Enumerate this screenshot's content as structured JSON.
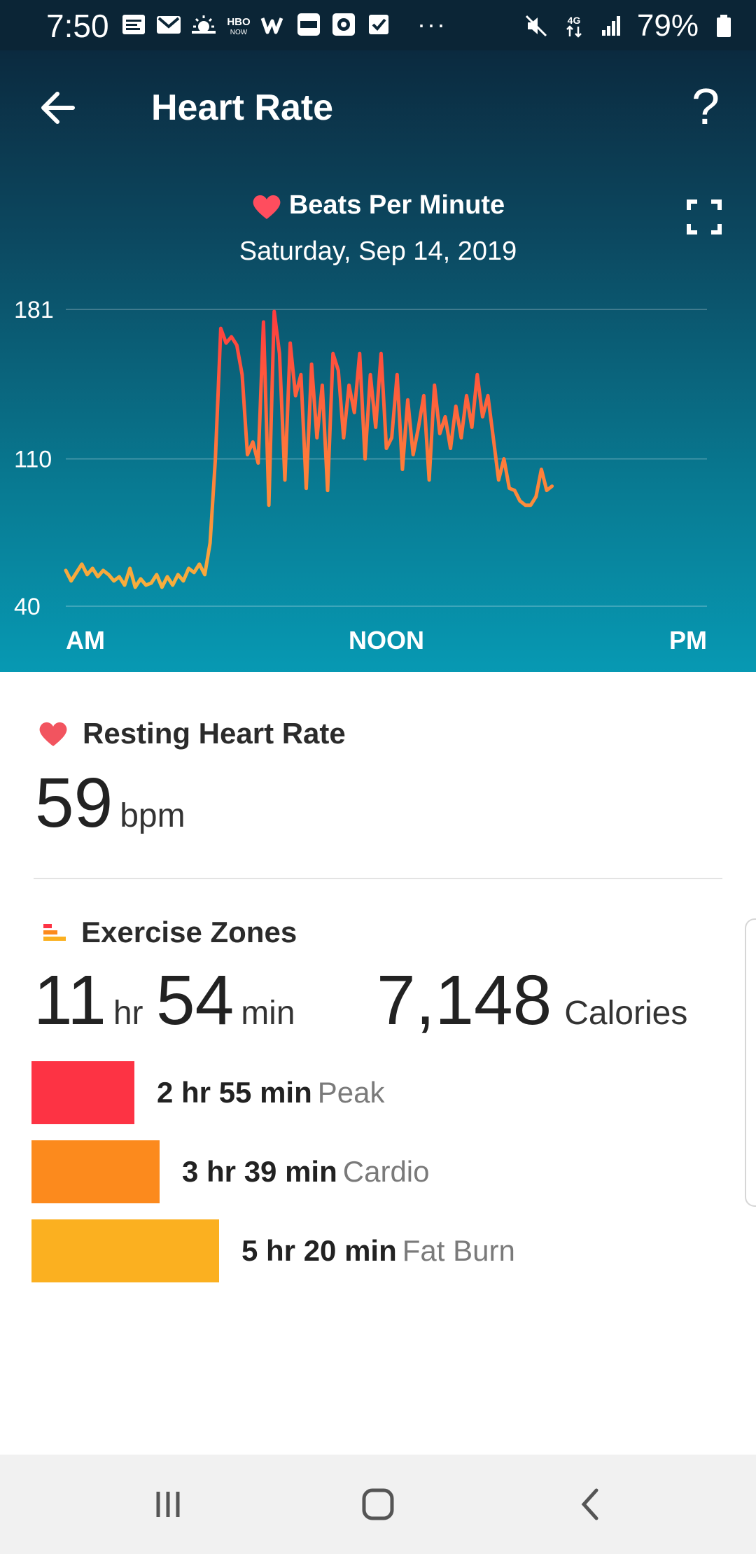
{
  "status_bar": {
    "time": "7:50",
    "notification_icons": [
      "calendar-icon",
      "gmail-icon",
      "weather-icon",
      "hbo-now-icon",
      "wish-icon",
      "slotomania-icon",
      "game-icon",
      "task-check-icon"
    ],
    "overflow": "···",
    "status_icons": [
      "mute-icon",
      "4g-data-icon",
      "signal-icon"
    ],
    "battery": "79%"
  },
  "header": {
    "title": "Heart Rate",
    "help": "?"
  },
  "chart": {
    "title": "Beats Per Minute",
    "date": "Saturday, Sep 14, 2019",
    "colors": {
      "fat_burn": "#f6b53d",
      "cardio": "#ff7f3a",
      "peak": "#ff3b3f"
    }
  },
  "chart_data": {
    "type": "line",
    "title": "Beats Per Minute",
    "xlabel": "",
    "ylabel": "",
    "x_ticks": [
      "AM",
      "NOON",
      "PM"
    ],
    "y_ticks": [
      181,
      110,
      40
    ],
    "ylim": [
      40,
      181
    ],
    "xlim_hours": [
      0,
      24
    ],
    "grid": true,
    "series": [
      {
        "x_hours": [
          0.0,
          0.2,
          0.4,
          0.6,
          0.8,
          1.0,
          1.2,
          1.4,
          1.6,
          1.8,
          2.0,
          2.2,
          2.4,
          2.6,
          2.8,
          3.0,
          3.2,
          3.4,
          3.6,
          3.8,
          4.0,
          4.2,
          4.4,
          4.6,
          4.8,
          5.0,
          5.2,
          5.4,
          5.6,
          5.8,
          6.0,
          6.2,
          6.4,
          6.6,
          6.8,
          7.0,
          7.2,
          7.4,
          7.6,
          7.8,
          8.0,
          8.2,
          8.4,
          8.6,
          8.8,
          9.0,
          9.2,
          9.4,
          9.6,
          9.8,
          10.0,
          10.2,
          10.4,
          10.6,
          10.8,
          11.0,
          11.2,
          11.4,
          11.6,
          11.8,
          12.0,
          12.2,
          12.4,
          12.6,
          12.8,
          13.0,
          13.2,
          13.4,
          13.6,
          13.8,
          14.0,
          14.2,
          14.4,
          14.6,
          14.8,
          15.0,
          15.2,
          15.4,
          15.6,
          15.8,
          16.0,
          16.2,
          16.4,
          16.6,
          16.8,
          17.0,
          17.2,
          17.4,
          17.6,
          17.8,
          18.0,
          18.2
        ],
        "bpm": [
          57,
          52,
          56,
          60,
          55,
          58,
          54,
          57,
          55,
          52,
          54,
          50,
          58,
          49,
          53,
          50,
          51,
          55,
          49,
          54,
          50,
          55,
          52,
          58,
          56,
          60,
          55,
          70,
          110,
          172,
          165,
          168,
          164,
          150,
          112,
          118,
          108,
          175,
          88,
          180,
          160,
          100,
          165,
          140,
          150,
          96,
          155,
          120,
          145,
          95,
          160,
          152,
          120,
          145,
          132,
          160,
          110,
          150,
          125,
          160,
          115,
          120,
          150,
          105,
          138,
          112,
          125,
          140,
          100,
          145,
          122,
          130,
          115,
          135,
          120,
          140,
          125,
          150,
          130,
          140,
          120,
          100,
          110,
          96,
          95,
          90,
          88,
          88,
          92,
          105,
          95,
          97
        ]
      }
    ]
  },
  "resting": {
    "title": "Resting Heart Rate",
    "value": "59",
    "unit": "bpm"
  },
  "zones": {
    "title": "Exercise Zones",
    "hours": "11",
    "hours_unit": "hr",
    "minutes": "54",
    "minutes_unit": "min",
    "calories": "7,148",
    "calories_unit": "Calories",
    "items": [
      {
        "time": "2 hr 55 min",
        "name": "Peak",
        "minutes": 175,
        "color": "#fd3344"
      },
      {
        "time": "3 hr 39 min",
        "name": "Cardio",
        "minutes": 219,
        "color": "#fc8a1d"
      },
      {
        "time": "5 hr 20 min",
        "name": "Fat Burn",
        "minutes": 320,
        "color": "#fbb020"
      }
    ]
  },
  "nav": {
    "icons": [
      "recent-apps-icon",
      "home-icon",
      "back-icon"
    ]
  }
}
